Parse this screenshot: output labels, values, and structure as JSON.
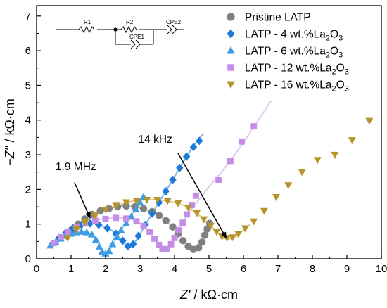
{
  "chart_data": {
    "type": "scatter",
    "xlabel_italic": "Z'",
    "xlabel_unit": " / kΩ·cm",
    "ylabel_italic": "−Z''",
    "ylabel_unit": " / kΩ·cm",
    "xlim": [
      0,
      10
    ],
    "ylim": [
      0,
      7.3
    ],
    "xticks": [
      0,
      1,
      2,
      3,
      4,
      5,
      6,
      7,
      8,
      9,
      10
    ],
    "yticks": [
      0,
      1,
      2,
      3,
      4,
      5,
      6,
      7
    ],
    "legend_position": "top-right",
    "series": [
      {
        "name": "Pristine LATP",
        "legend_main": "Pristine LATP",
        "legend_sub": "",
        "legend_tail": "",
        "marker": "circle",
        "color": "#808080",
        "fit_color": "#c4c4c4",
        "points": [
          [
            1.0,
            0.82
          ],
          [
            1.2,
            1.0
          ],
          [
            1.4,
            1.15
          ],
          [
            1.6,
            1.28
          ],
          [
            1.85,
            1.38
          ],
          [
            2.1,
            1.45
          ],
          [
            2.35,
            1.5
          ],
          [
            2.6,
            1.52
          ],
          [
            2.85,
            1.5
          ],
          [
            3.1,
            1.45
          ],
          [
            3.35,
            1.36
          ],
          [
            3.55,
            1.25
          ],
          [
            3.75,
            1.1
          ],
          [
            3.95,
            0.92
          ],
          [
            4.1,
            0.72
          ],
          [
            4.25,
            0.52
          ],
          [
            4.4,
            0.36
          ],
          [
            4.55,
            0.27
          ],
          [
            4.7,
            0.32
          ],
          [
            4.8,
            0.48
          ],
          [
            4.88,
            0.68
          ],
          [
            4.95,
            0.86
          ],
          [
            5.02,
            1.02
          ]
        ],
        "fit": [
          [
            0.95,
            0.7
          ],
          [
            1.5,
            1.22
          ],
          [
            2.5,
            1.52
          ],
          [
            3.4,
            1.32
          ],
          [
            4.0,
            0.88
          ],
          [
            4.4,
            0.38
          ],
          [
            4.58,
            0.26
          ],
          [
            4.75,
            0.4
          ],
          [
            4.9,
            0.75
          ],
          [
            5.05,
            1.02
          ]
        ]
      },
      {
        "name": "LATP - 4 wt.%La2O3",
        "legend_main": "LATP - 4 wt.%La",
        "legend_sub": "2",
        "legend_tail": "O",
        "legend_sub2": "3",
        "marker": "diamond",
        "color": "#1a7ad6",
        "fit_color": "#7ab4ea",
        "points": [
          [
            0.45,
            0.42
          ],
          [
            0.65,
            0.6
          ],
          [
            0.85,
            0.76
          ],
          [
            1.05,
            0.88
          ],
          [
            1.3,
            0.98
          ],
          [
            1.55,
            1.02
          ],
          [
            1.8,
            0.98
          ],
          [
            2.05,
            0.88
          ],
          [
            2.3,
            0.72
          ],
          [
            2.5,
            0.52
          ],
          [
            2.65,
            0.36
          ],
          [
            2.8,
            0.42
          ],
          [
            2.95,
            0.66
          ],
          [
            3.15,
            0.98
          ],
          [
            3.35,
            1.3
          ],
          [
            3.55,
            1.62
          ],
          [
            3.75,
            1.95
          ],
          [
            3.95,
            2.28
          ],
          [
            4.15,
            2.62
          ],
          [
            4.35,
            2.95
          ],
          [
            4.55,
            3.22
          ],
          [
            4.72,
            3.4
          ]
        ],
        "fit": [
          [
            0.4,
            0.38
          ],
          [
            1.0,
            0.86
          ],
          [
            1.6,
            1.02
          ],
          [
            2.2,
            0.8
          ],
          [
            2.55,
            0.45
          ],
          [
            2.72,
            0.34
          ],
          [
            2.9,
            0.55
          ],
          [
            3.3,
            1.22
          ],
          [
            3.9,
            2.2
          ],
          [
            4.5,
            3.18
          ],
          [
            4.85,
            3.62
          ]
        ]
      },
      {
        "name": "LATP - 6 wt.%La2O3",
        "legend_main": "LATP - 6 wt.%La",
        "legend_sub": "2",
        "legend_tail": "O",
        "legend_sub2": "3",
        "marker": "triangle-up",
        "color": "#3d9ee4",
        "fit_color": "#a6d0f2",
        "points": [
          [
            0.4,
            0.38
          ],
          [
            0.55,
            0.48
          ],
          [
            0.7,
            0.58
          ],
          [
            0.85,
            0.66
          ],
          [
            1.0,
            0.72
          ],
          [
            1.15,
            0.76
          ],
          [
            1.3,
            0.78
          ],
          [
            1.45,
            0.76
          ],
          [
            1.6,
            0.7
          ],
          [
            1.72,
            0.55
          ],
          [
            1.82,
            0.35
          ],
          [
            1.9,
            0.2
          ],
          [
            2.0,
            0.15
          ],
          [
            2.1,
            0.22
          ],
          [
            2.2,
            0.42
          ],
          [
            2.32,
            0.62
          ],
          [
            2.45,
            0.82
          ],
          [
            2.6,
            1.02
          ],
          [
            2.75,
            1.22
          ],
          [
            2.88,
            1.42
          ],
          [
            3.0,
            1.62
          ],
          [
            3.1,
            1.78
          ]
        ],
        "fit": [
          [
            0.38,
            0.35
          ],
          [
            0.9,
            0.68
          ],
          [
            1.35,
            0.78
          ],
          [
            1.7,
            0.58
          ],
          [
            1.9,
            0.2
          ],
          [
            2.0,
            0.13
          ],
          [
            2.12,
            0.25
          ],
          [
            2.4,
            0.75
          ],
          [
            2.8,
            1.3
          ],
          [
            3.1,
            1.76
          ]
        ]
      },
      {
        "name": "LATP - 12 wt.%La2O3",
        "legend_main": "LATP - 12 wt.%La",
        "legend_sub": "2",
        "legend_tail": "O",
        "legend_sub2": "3",
        "marker": "square",
        "color": "#c58ee6",
        "fit_color": "#e4c8f2",
        "points": [
          [
            0.5,
            0.45
          ],
          [
            0.7,
            0.62
          ],
          [
            0.9,
            0.78
          ],
          [
            1.15,
            0.92
          ],
          [
            1.4,
            1.02
          ],
          [
            1.7,
            1.1
          ],
          [
            2.0,
            1.15
          ],
          [
            2.3,
            1.18
          ],
          [
            2.6,
            1.16
          ],
          [
            2.9,
            1.08
          ],
          [
            3.1,
            0.95
          ],
          [
            3.28,
            0.78
          ],
          [
            3.42,
            0.58
          ],
          [
            3.55,
            0.4
          ],
          [
            3.65,
            0.28
          ],
          [
            3.78,
            0.28
          ],
          [
            3.9,
            0.42
          ],
          [
            4.0,
            0.6
          ],
          [
            4.12,
            0.82
          ],
          [
            4.24,
            1.04
          ],
          [
            4.36,
            1.28
          ],
          [
            4.5,
            1.55
          ],
          [
            4.62,
            1.82
          ],
          [
            5.28,
            2.28
          ],
          [
            5.62,
            2.82
          ],
          [
            5.95,
            3.38
          ],
          [
            6.3,
            3.82
          ]
        ],
        "fit": [
          [
            0.45,
            0.4
          ],
          [
            1.2,
            0.95
          ],
          [
            2.2,
            1.18
          ],
          [
            2.95,
            1.05
          ],
          [
            3.4,
            0.62
          ],
          [
            3.65,
            0.26
          ],
          [
            3.78,
            0.25
          ],
          [
            3.95,
            0.5
          ],
          [
            4.3,
            1.15
          ],
          [
            4.9,
            1.95
          ],
          [
            5.6,
            2.8
          ],
          [
            6.3,
            3.8
          ],
          [
            6.8,
            4.55
          ]
        ]
      },
      {
        "name": "LATP - 16 wt.%La2O3",
        "legend_main": "LATP - 16 wt.%La",
        "legend_sub": "2",
        "legend_tail": "O",
        "legend_sub2": "3",
        "marker": "triangle-down",
        "color": "#b5952a",
        "fit_color": "#e0cc88",
        "points": [
          [
            0.9,
            0.6
          ],
          [
            1.15,
            0.85
          ],
          [
            1.4,
            1.05
          ],
          [
            1.7,
            1.25
          ],
          [
            2.0,
            1.42
          ],
          [
            2.3,
            1.55
          ],
          [
            2.6,
            1.63
          ],
          [
            2.9,
            1.67
          ],
          [
            3.2,
            1.7
          ],
          [
            3.5,
            1.7
          ],
          [
            3.8,
            1.67
          ],
          [
            4.1,
            1.6
          ],
          [
            4.4,
            1.48
          ],
          [
            4.65,
            1.32
          ],
          [
            4.85,
            1.14
          ],
          [
            5.05,
            0.95
          ],
          [
            5.22,
            0.78
          ],
          [
            5.38,
            0.64
          ],
          [
            5.52,
            0.6
          ],
          [
            5.68,
            0.62
          ],
          [
            5.85,
            0.72
          ],
          [
            6.05,
            0.88
          ],
          [
            6.3,
            1.08
          ],
          [
            6.6,
            1.38
          ],
          [
            6.95,
            1.78
          ],
          [
            7.3,
            2.12
          ],
          [
            7.7,
            2.5
          ],
          [
            8.15,
            2.85
          ],
          [
            8.65,
            3.0
          ],
          [
            9.15,
            3.42
          ],
          [
            9.65,
            3.98
          ]
        ],
        "fit": [
          [
            0.85,
            0.55
          ],
          [
            1.6,
            1.2
          ],
          [
            2.6,
            1.62
          ],
          [
            3.5,
            1.7
          ],
          [
            4.3,
            1.52
          ],
          [
            4.9,
            1.1
          ],
          [
            5.3,
            0.7
          ],
          [
            5.55,
            0.58
          ],
          [
            5.8,
            0.66
          ],
          [
            6.2,
            1.0
          ]
        ]
      }
    ],
    "annotations": [
      {
        "label": "1.9 MHz",
        "text_at": [
          0.55,
          2.55
        ],
        "arrow_from": [
          1.1,
          2.2
        ],
        "arrow_to": [
          1.55,
          1.18
        ]
      },
      {
        "label": "14 kHz",
        "text_at": [
          2.95,
          3.35
        ],
        "arrow_from": [
          4.1,
          3.05
        ],
        "arrow_to": [
          5.5,
          0.6
        ]
      }
    ],
    "circuit": {
      "labels": [
        "R1",
        "R2",
        "CPE1",
        "CPE2"
      ]
    }
  }
}
